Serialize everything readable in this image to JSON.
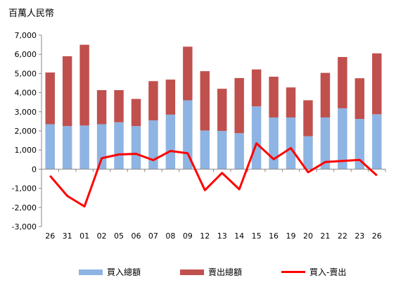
{
  "chart_data": {
    "type": "bar",
    "unit_label": "百萬人民幣",
    "categories": [
      "26",
      "31",
      "01",
      "02",
      "05",
      "06",
      "07",
      "08",
      "09",
      "12",
      "13",
      "14",
      "15",
      "16",
      "19",
      "20",
      "21",
      "22",
      "23",
      "26"
    ],
    "ylim": [
      -3000,
      7000
    ],
    "yticks": [
      "-3,000",
      "-2,000",
      "-1,000",
      "0",
      "1,000",
      "2,000",
      "3,000",
      "4,000",
      "5,000",
      "6,000",
      "7,000"
    ],
    "grid": false,
    "legend_position": "bottom",
    "series": [
      {
        "name": "買入總額",
        "kind": "bar",
        "color": "#8eb4e3",
        "values": [
          2350,
          2250,
          2280,
          2350,
          2450,
          2250,
          2550,
          2850,
          3600,
          2020,
          2000,
          1880,
          3280,
          2700,
          2700,
          1720,
          2700,
          3180,
          2620,
          2870
        ]
      },
      {
        "name": "賣出總額",
        "kind": "bar",
        "color": "#c0504d",
        "values": [
          2700,
          3650,
          4220,
          1780,
          1680,
          1420,
          2050,
          1830,
          2800,
          3100,
          2200,
          2880,
          1930,
          2130,
          1570,
          1880,
          2330,
          2680,
          2130,
          3180
        ]
      },
      {
        "name": "買入-賣出",
        "kind": "line",
        "color": "#ff0000",
        "values": [
          -350,
          -1400,
          -1950,
          570,
          770,
          800,
          470,
          950,
          830,
          -1100,
          -200,
          -1050,
          1350,
          520,
          1100,
          -160,
          370,
          430,
          480,
          -330
        ]
      }
    ]
  }
}
